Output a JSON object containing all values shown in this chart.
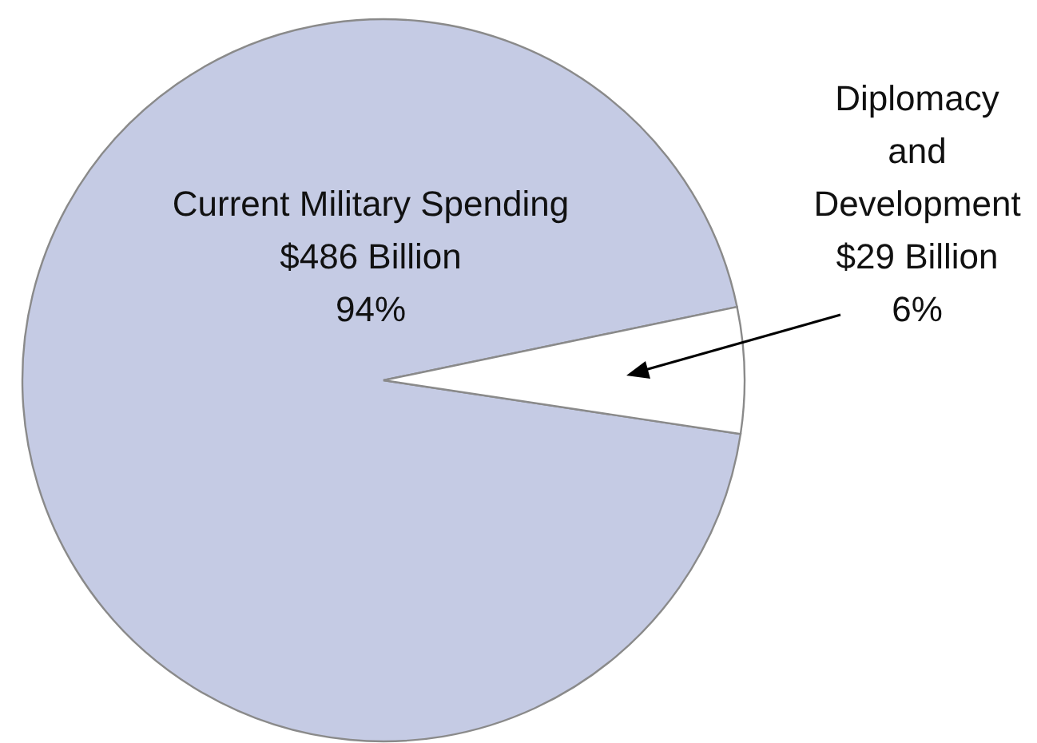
{
  "chart_data": {
    "type": "pie",
    "categories": [
      "Current Military Spending",
      "Diplomacy and Development"
    ],
    "values": [
      486,
      29
    ],
    "value_labels": [
      "$486 Billion",
      "$29 Billion"
    ],
    "annotations": [
      "94%",
      "6%"
    ],
    "colors": [
      "#c5cbe4",
      "#ffffff"
    ]
  }
}
